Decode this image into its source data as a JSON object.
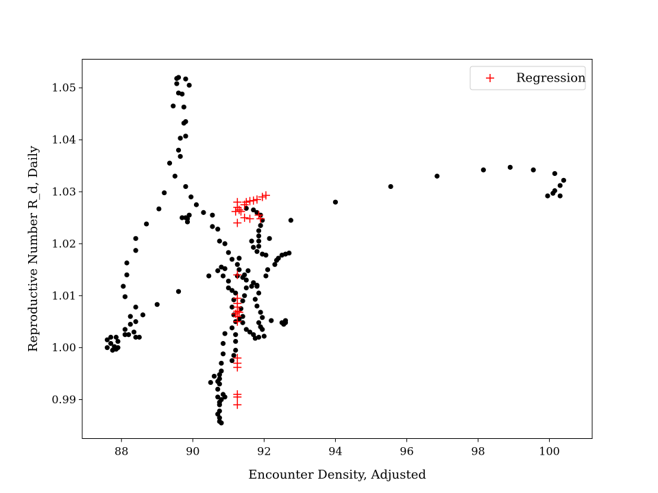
{
  "chart_data": {
    "type": "scatter",
    "title": "",
    "xlabel": "Encounter Density, Adjusted",
    "ylabel": "Reproductive Number R_d, Daily",
    "xlim": [
      86.9,
      101.2
    ],
    "ylim": [
      0.9825,
      1.0555
    ],
    "x_ticks": [
      88,
      90,
      92,
      94,
      96,
      98,
      100
    ],
    "y_ticks": [
      0.99,
      1.0,
      1.01,
      1.02,
      1.03,
      1.04,
      1.05
    ],
    "y_tick_labels": [
      "0.99",
      "1.00",
      "1.01",
      "1.02",
      "1.03",
      "1.04",
      "1.05"
    ],
    "grid": false,
    "legend": {
      "location": "top-right",
      "entries": [
        "Regression"
      ]
    },
    "series": [
      {
        "marker": "dot",
        "color": "#000000",
        "points": [
          [
            87.6,
            1.0
          ],
          [
            87.6,
            1.0015
          ],
          [
            87.7,
            1.0008
          ],
          [
            87.75,
            0.9995
          ],
          [
            87.8,
            1.0002
          ],
          [
            87.85,
            0.9997
          ],
          [
            87.9,
            1.0012
          ],
          [
            87.9,
            1.0
          ],
          [
            87.7,
            1.002
          ],
          [
            87.85,
            1.002
          ],
          [
            88.1,
            1.0025
          ],
          [
            88.1,
            1.0035
          ],
          [
            88.2,
            1.0025
          ],
          [
            88.25,
            1.0045
          ],
          [
            88.35,
            1.003
          ],
          [
            88.4,
            1.002
          ],
          [
            88.5,
            1.002
          ],
          [
            88.25,
            1.006
          ],
          [
            88.4,
            1.005
          ],
          [
            88.4,
            1.0078
          ],
          [
            88.6,
            1.0063
          ],
          [
            89.0,
            1.0083
          ],
          [
            88.1,
            1.0098
          ],
          [
            88.05,
            1.0118
          ],
          [
            88.15,
            1.014
          ],
          [
            88.15,
            1.0163
          ],
          [
            88.4,
            1.0187
          ],
          [
            88.4,
            1.021
          ],
          [
            88.7,
            1.0238
          ],
          [
            89.05,
            1.0267
          ],
          [
            89.2,
            1.0298
          ],
          [
            89.35,
            1.0355
          ],
          [
            89.5,
            1.033
          ],
          [
            89.45,
            1.0465
          ],
          [
            89.55,
            1.0518
          ],
          [
            89.6,
            1.052
          ],
          [
            89.6,
            1.049
          ],
          [
            89.55,
            1.0508
          ],
          [
            89.7,
            1.0488
          ],
          [
            89.75,
            1.0463
          ],
          [
            89.8,
            1.0517
          ],
          [
            89.9,
            1.0505
          ],
          [
            89.8,
            1.0435
          ],
          [
            89.75,
            1.0432
          ],
          [
            89.8,
            1.0407
          ],
          [
            89.65,
            1.0403
          ],
          [
            89.6,
            1.038
          ],
          [
            89.65,
            1.0368
          ],
          [
            89.8,
            1.031
          ],
          [
            89.95,
            1.029
          ],
          [
            90.1,
            1.0275
          ],
          [
            90.3,
            1.026
          ],
          [
            90.55,
            1.0255
          ],
          [
            89.7,
            1.025
          ],
          [
            89.8,
            1.025
          ],
          [
            89.85,
            1.0248
          ],
          [
            89.9,
            1.0255
          ],
          [
            89.85,
            1.0242
          ],
          [
            89.6,
            1.0108
          ],
          [
            90.55,
            1.0233
          ],
          [
            90.7,
            1.0228
          ],
          [
            90.75,
            1.0205
          ],
          [
            90.9,
            1.02
          ],
          [
            91.0,
            1.0183
          ],
          [
            91.1,
            1.017
          ],
          [
            91.3,
            1.0172
          ],
          [
            91.25,
            1.016
          ],
          [
            91.3,
            1.015
          ],
          [
            91.25,
            1.0138
          ],
          [
            91.4,
            1.0135
          ],
          [
            91.5,
            1.013
          ],
          [
            91.5,
            1.0115
          ],
          [
            91.45,
            1.01
          ],
          [
            91.4,
            1.009
          ],
          [
            91.35,
            1.0075
          ],
          [
            91.4,
            1.006
          ],
          [
            91.3,
            1.0055
          ],
          [
            91.4,
            1.0048
          ],
          [
            91.5,
            1.0035
          ],
          [
            91.6,
            1.003
          ],
          [
            91.7,
            1.0025
          ],
          [
            91.75,
            1.0018
          ],
          [
            91.85,
            1.002
          ],
          [
            92.0,
            1.0022
          ],
          [
            90.45,
            1.0138
          ],
          [
            90.7,
            1.0148
          ],
          [
            90.8,
            1.0155
          ],
          [
            90.9,
            1.0152
          ],
          [
            90.85,
            1.0138
          ],
          [
            91.0,
            1.0128
          ],
          [
            91.0,
            1.0115
          ],
          [
            91.1,
            1.011
          ],
          [
            91.2,
            1.0105
          ],
          [
            91.15,
            1.0092
          ],
          [
            91.1,
            1.0078
          ],
          [
            91.15,
            1.0063
          ],
          [
            91.2,
            1.005
          ],
          [
            91.1,
            1.0038
          ],
          [
            91.2,
            1.0025
          ],
          [
            91.2,
            1.0012
          ],
          [
            90.9,
            1.0027
          ],
          [
            90.85,
            1.0008
          ],
          [
            90.85,
            0.9988
          ],
          [
            90.8,
            0.997
          ],
          [
            90.8,
            0.9955
          ],
          [
            90.75,
            0.9948
          ],
          [
            90.75,
            0.994
          ],
          [
            90.7,
            0.9935
          ],
          [
            90.75,
            0.993
          ],
          [
            90.5,
            0.9933
          ],
          [
            90.6,
            0.9945
          ],
          [
            90.7,
            0.992
          ],
          [
            90.7,
            0.9905
          ],
          [
            90.75,
            0.989
          ],
          [
            90.75,
            0.9878
          ],
          [
            90.7,
            0.9872
          ],
          [
            90.75,
            0.9865
          ],
          [
            90.75,
            0.9858
          ],
          [
            90.8,
            0.9855
          ],
          [
            90.75,
            0.9895
          ],
          [
            90.8,
            0.99
          ],
          [
            90.85,
            0.991
          ],
          [
            90.9,
            0.9905
          ],
          [
            91.1,
            0.9975
          ],
          [
            91.15,
            0.9985
          ],
          [
            91.2,
            0.9995
          ],
          [
            91.5,
            1.0268
          ],
          [
            91.7,
            1.0265
          ],
          [
            91.8,
            1.026
          ],
          [
            91.9,
            1.0255
          ],
          [
            91.95,
            1.0245
          ],
          [
            91.9,
            1.0235
          ],
          [
            91.85,
            1.0225
          ],
          [
            91.85,
            1.0215
          ],
          [
            91.85,
            1.0205
          ],
          [
            91.85,
            1.0195
          ],
          [
            91.65,
            1.0205
          ],
          [
            91.7,
            1.0193
          ],
          [
            91.8,
            1.0185
          ],
          [
            91.95,
            1.018
          ],
          [
            92.05,
            1.0178
          ],
          [
            92.15,
            1.021
          ],
          [
            92.1,
            1.015
          ],
          [
            92.3,
            1.016
          ],
          [
            92.4,
            1.0172
          ],
          [
            92.5,
            1.0178
          ],
          [
            92.6,
            1.018
          ],
          [
            92.7,
            1.0182
          ],
          [
            92.75,
            1.0245
          ],
          [
            92.35,
            1.0168
          ],
          [
            91.55,
            1.0148
          ],
          [
            91.45,
            1.014
          ],
          [
            91.7,
            1.0125
          ],
          [
            91.8,
            1.0118
          ],
          [
            91.85,
            1.0105
          ],
          [
            91.75,
            1.0093
          ],
          [
            91.8,
            1.008
          ],
          [
            91.9,
            1.0068
          ],
          [
            91.95,
            1.0058
          ],
          [
            91.85,
            1.0048
          ],
          [
            91.9,
            1.004
          ],
          [
            91.95,
            1.0035
          ],
          [
            92.2,
            1.0052
          ],
          [
            92.5,
            1.0048
          ],
          [
            92.6,
            1.0048
          ],
          [
            92.55,
            1.0045
          ],
          [
            92.6,
            1.0052
          ],
          [
            92.05,
            1.0138
          ],
          [
            91.65,
            1.0118
          ],
          [
            91.8,
            1.012
          ],
          [
            94.0,
            1.028
          ],
          [
            95.55,
            1.031
          ],
          [
            96.85,
            1.033
          ],
          [
            98.15,
            1.0342
          ],
          [
            98.9,
            1.0347
          ],
          [
            99.55,
            1.0342
          ],
          [
            100.15,
            1.0335
          ],
          [
            100.4,
            1.0322
          ],
          [
            100.3,
            1.0312
          ],
          [
            100.15,
            1.0302
          ],
          [
            100.1,
            1.0297
          ],
          [
            99.95,
            1.0292
          ],
          [
            100.3,
            1.0292
          ]
        ]
      },
      {
        "name": "Regression",
        "marker": "plus",
        "color": "#ff0000",
        "points": [
          [
            91.25,
            1.028
          ],
          [
            91.25,
            1.027
          ],
          [
            91.3,
            1.0265
          ],
          [
            91.2,
            1.0262
          ],
          [
            91.35,
            1.0262
          ],
          [
            91.45,
            1.0275
          ],
          [
            91.5,
            1.028
          ],
          [
            91.6,
            1.0282
          ],
          [
            91.7,
            1.0283
          ],
          [
            91.8,
            1.0285
          ],
          [
            91.95,
            1.029
          ],
          [
            92.05,
            1.0293
          ],
          [
            91.45,
            1.025
          ],
          [
            91.6,
            1.0248
          ],
          [
            91.25,
            1.024
          ],
          [
            91.85,
            1.0255
          ],
          [
            91.9,
            1.0248
          ],
          [
            91.25,
            1.014
          ],
          [
            91.25,
            1.0095
          ],
          [
            91.25,
            1.0085
          ],
          [
            91.25,
            1.0078
          ],
          [
            91.25,
            1.007
          ],
          [
            91.3,
            1.0068
          ],
          [
            91.2,
            1.0065
          ],
          [
            91.25,
            1.006
          ],
          [
            91.25,
            1.005
          ],
          [
            91.25,
            0.998
          ],
          [
            91.25,
            0.997
          ],
          [
            91.25,
            0.9962
          ],
          [
            91.25,
            0.991
          ],
          [
            91.25,
            0.9905
          ],
          [
            91.25,
            0.989
          ]
        ]
      }
    ]
  }
}
